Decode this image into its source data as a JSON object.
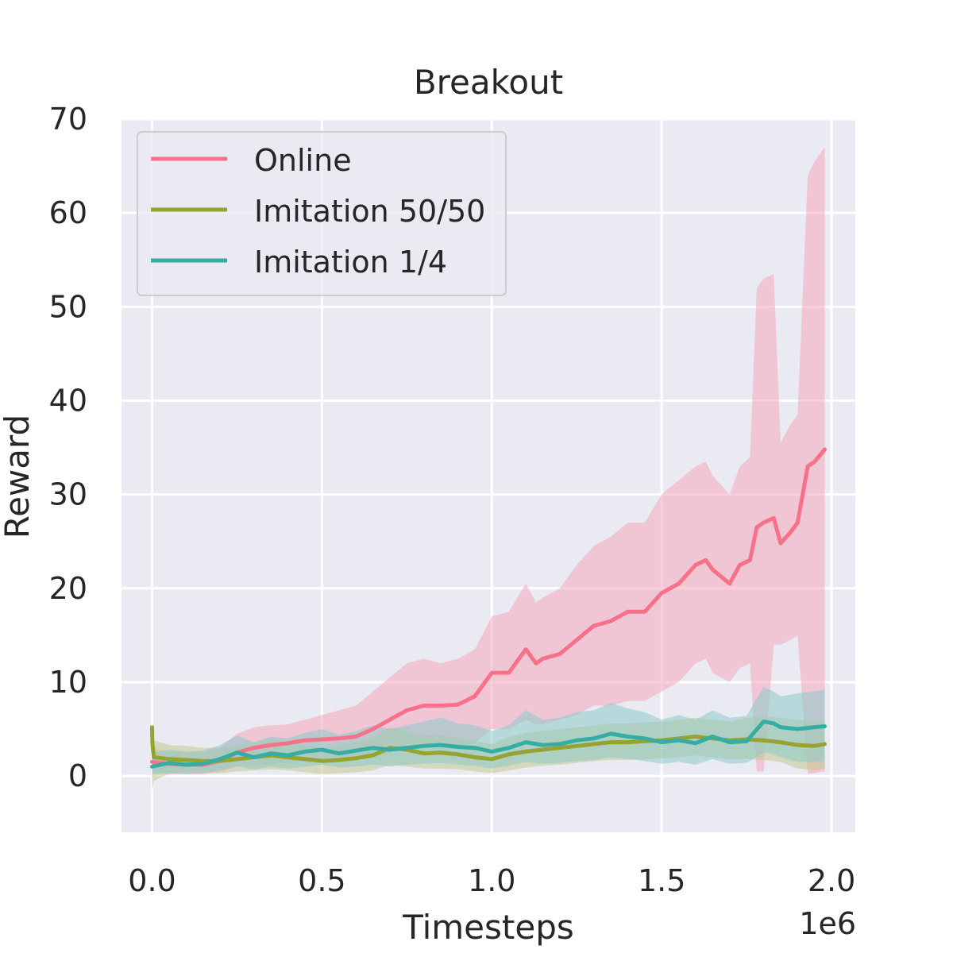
{
  "chart_data": {
    "type": "line",
    "title": "Breakout",
    "xlabel": "Timesteps",
    "ylabel": "Reward",
    "x_offset_label": "1e6",
    "xlim": [
      -0.09,
      2.07
    ],
    "ylim": [
      -6,
      70
    ],
    "xticks": [
      0.0,
      0.5,
      1.0,
      1.5,
      2.0
    ],
    "xtick_labels": [
      "0.0",
      "0.5",
      "1.0",
      "1.5",
      "2.0"
    ],
    "yticks": [
      0,
      10,
      20,
      30,
      40,
      50,
      60,
      70
    ],
    "ytick_labels": [
      "0",
      "10",
      "20",
      "30",
      "40",
      "50",
      "60",
      "70"
    ],
    "grid": true,
    "legend_position": "top-left",
    "series": [
      {
        "name": "Online",
        "color": "#f77189",
        "fill": "#f4a6bb",
        "x": [
          0.0,
          0.05,
          0.1,
          0.15,
          0.2,
          0.25,
          0.3,
          0.35,
          0.4,
          0.45,
          0.5,
          0.55,
          0.6,
          0.65,
          0.7,
          0.75,
          0.8,
          0.85,
          0.9,
          0.95,
          1.0,
          1.05,
          1.1,
          1.13,
          1.15,
          1.2,
          1.25,
          1.3,
          1.35,
          1.4,
          1.45,
          1.5,
          1.55,
          1.6,
          1.63,
          1.65,
          1.7,
          1.73,
          1.76,
          1.78,
          1.8,
          1.83,
          1.85,
          1.88,
          1.9,
          1.93,
          1.95,
          1.98
        ],
        "y": [
          1.5,
          1.3,
          1.2,
          1.2,
          1.6,
          2.5,
          3.0,
          3.3,
          3.5,
          3.8,
          3.9,
          4.0,
          4.2,
          5.0,
          6.0,
          7.0,
          7.5,
          7.5,
          7.6,
          8.5,
          11.0,
          11.0,
          13.5,
          12.0,
          12.5,
          13.0,
          14.5,
          16.0,
          16.5,
          17.5,
          17.5,
          19.5,
          20.5,
          22.5,
          23.0,
          22.0,
          20.5,
          22.5,
          23.0,
          26.5,
          27.0,
          27.5,
          24.8,
          26.0,
          27.0,
          33.0,
          33.5,
          34.8
        ],
        "lower": [
          0.3,
          0.2,
          0.2,
          0.2,
          0.5,
          1.0,
          1.2,
          1.3,
          1.4,
          1.5,
          1.6,
          1.7,
          1.8,
          2.0,
          2.5,
          3.0,
          3.3,
          3.0,
          3.2,
          3.5,
          5.0,
          5.0,
          6.0,
          5.5,
          5.5,
          6.0,
          6.5,
          7.5,
          7.5,
          8.0,
          8.0,
          9.0,
          10.0,
          12.0,
          12.5,
          11.0,
          10.0,
          11.5,
          12.0,
          0.5,
          0.5,
          14.0,
          14.0,
          14.5,
          15.0,
          0.2,
          0.3,
          0.5
        ],
        "upper": [
          3.0,
          2.6,
          2.5,
          2.5,
          3.0,
          4.5,
          5.2,
          5.4,
          5.5,
          6.0,
          6.5,
          7.0,
          7.5,
          9.0,
          10.5,
          12.0,
          12.5,
          12.0,
          12.5,
          13.5,
          17.0,
          17.5,
          20.5,
          18.5,
          19.0,
          20.0,
          22.5,
          24.5,
          25.5,
          27.0,
          27.0,
          30.0,
          31.5,
          33.0,
          33.5,
          32.0,
          30.0,
          33.0,
          34.0,
          52.0,
          53.0,
          53.5,
          35.5,
          37.5,
          38.5,
          64.0,
          65.5,
          67.0
        ]
      },
      {
        "name": "Imitation 50/50",
        "color": "#96a330",
        "fill": "#c2c88f",
        "x": [
          0.0,
          0.001,
          0.005,
          0.05,
          0.1,
          0.15,
          0.2,
          0.25,
          0.3,
          0.35,
          0.4,
          0.45,
          0.5,
          0.55,
          0.6,
          0.65,
          0.7,
          0.75,
          0.8,
          0.85,
          0.9,
          0.95,
          1.0,
          1.05,
          1.1,
          1.15,
          1.2,
          1.25,
          1.3,
          1.35,
          1.4,
          1.45,
          1.5,
          1.55,
          1.6,
          1.65,
          1.7,
          1.75,
          1.8,
          1.85,
          1.9,
          1.95,
          1.98
        ],
        "y": [
          5.2,
          3.5,
          2.0,
          1.8,
          1.7,
          1.6,
          1.6,
          1.8,
          2.0,
          2.2,
          2.0,
          1.8,
          1.6,
          1.7,
          1.9,
          2.2,
          3.0,
          2.8,
          2.4,
          2.5,
          2.3,
          2.0,
          1.8,
          2.3,
          2.6,
          2.8,
          3.0,
          3.2,
          3.4,
          3.6,
          3.6,
          3.7,
          3.8,
          4.0,
          4.2,
          4.0,
          3.8,
          3.9,
          3.8,
          3.6,
          3.3,
          3.2,
          3.4
        ],
        "lower": [
          -2.0,
          -1.5,
          -0.5,
          0.2,
          0.3,
          0.3,
          0.3,
          0.5,
          0.6,
          0.7,
          0.6,
          0.4,
          0.2,
          0.3,
          0.4,
          0.6,
          1.2,
          1.0,
          0.8,
          0.8,
          0.7,
          0.5,
          0.3,
          0.6,
          0.9,
          1.1,
          1.2,
          1.4,
          1.6,
          1.7,
          1.7,
          1.8,
          1.9,
          2.0,
          2.2,
          2.0,
          1.8,
          1.8,
          1.7,
          1.5,
          0.8,
          0.6,
          0.8
        ],
        "upper": [
          6.0,
          5.0,
          3.8,
          3.3,
          3.2,
          3.0,
          3.0,
          3.2,
          3.6,
          4.0,
          3.6,
          3.3,
          3.0,
          3.2,
          3.6,
          4.0,
          5.2,
          4.8,
          4.2,
          4.4,
          4.0,
          3.7,
          3.4,
          4.2,
          4.6,
          4.8,
          5.0,
          5.2,
          5.4,
          5.6,
          5.6,
          5.7,
          5.8,
          6.0,
          6.2,
          6.0,
          5.8,
          6.2,
          6.4,
          6.2,
          6.0,
          5.8,
          6.0
        ]
      },
      {
        "name": "Imitation 1/4",
        "color": "#36ada4",
        "fill": "#8ccbc9",
        "x": [
          0.0,
          0.05,
          0.1,
          0.15,
          0.2,
          0.25,
          0.3,
          0.35,
          0.4,
          0.45,
          0.5,
          0.55,
          0.6,
          0.65,
          0.7,
          0.75,
          0.8,
          0.85,
          0.9,
          0.95,
          1.0,
          1.05,
          1.1,
          1.15,
          1.2,
          1.25,
          1.3,
          1.35,
          1.4,
          1.45,
          1.5,
          1.55,
          1.6,
          1.65,
          1.7,
          1.75,
          1.8,
          1.83,
          1.85,
          1.9,
          1.95,
          1.98
        ],
        "y": [
          1.0,
          1.4,
          1.2,
          1.3,
          1.8,
          2.5,
          2.0,
          2.4,
          2.2,
          2.6,
          2.8,
          2.4,
          2.7,
          3.0,
          2.8,
          3.0,
          3.2,
          3.3,
          3.1,
          3.0,
          2.6,
          3.0,
          3.6,
          3.3,
          3.4,
          3.8,
          4.0,
          4.5,
          4.2,
          4.0,
          3.6,
          3.8,
          3.5,
          4.2,
          3.6,
          3.7,
          5.8,
          5.6,
          5.2,
          5.0,
          5.2,
          5.3
        ],
        "lower": [
          0.2,
          0.3,
          0.2,
          0.3,
          0.6,
          1.0,
          0.7,
          1.0,
          0.8,
          1.0,
          1.2,
          0.9,
          1.0,
          1.2,
          1.0,
          1.2,
          1.3,
          1.4,
          1.2,
          1.1,
          0.8,
          1.1,
          1.5,
          1.3,
          1.4,
          1.6,
          1.7,
          2.0,
          1.8,
          1.6,
          1.3,
          1.5,
          1.2,
          1.8,
          1.3,
          1.4,
          2.5,
          2.3,
          2.0,
          1.5,
          1.5,
          1.6
        ],
        "upper": [
          2.5,
          2.8,
          2.6,
          2.7,
          3.3,
          4.3,
          3.6,
          4.2,
          4.0,
          4.6,
          5.0,
          4.4,
          4.8,
          5.4,
          5.0,
          5.4,
          5.8,
          6.2,
          5.6,
          5.4,
          4.8,
          5.4,
          7.0,
          6.0,
          6.2,
          6.8,
          7.0,
          7.8,
          7.2,
          6.8,
          6.0,
          6.5,
          6.0,
          7.0,
          6.2,
          6.4,
          9.5,
          9.0,
          8.5,
          8.8,
          9.0,
          9.2
        ]
      }
    ]
  }
}
